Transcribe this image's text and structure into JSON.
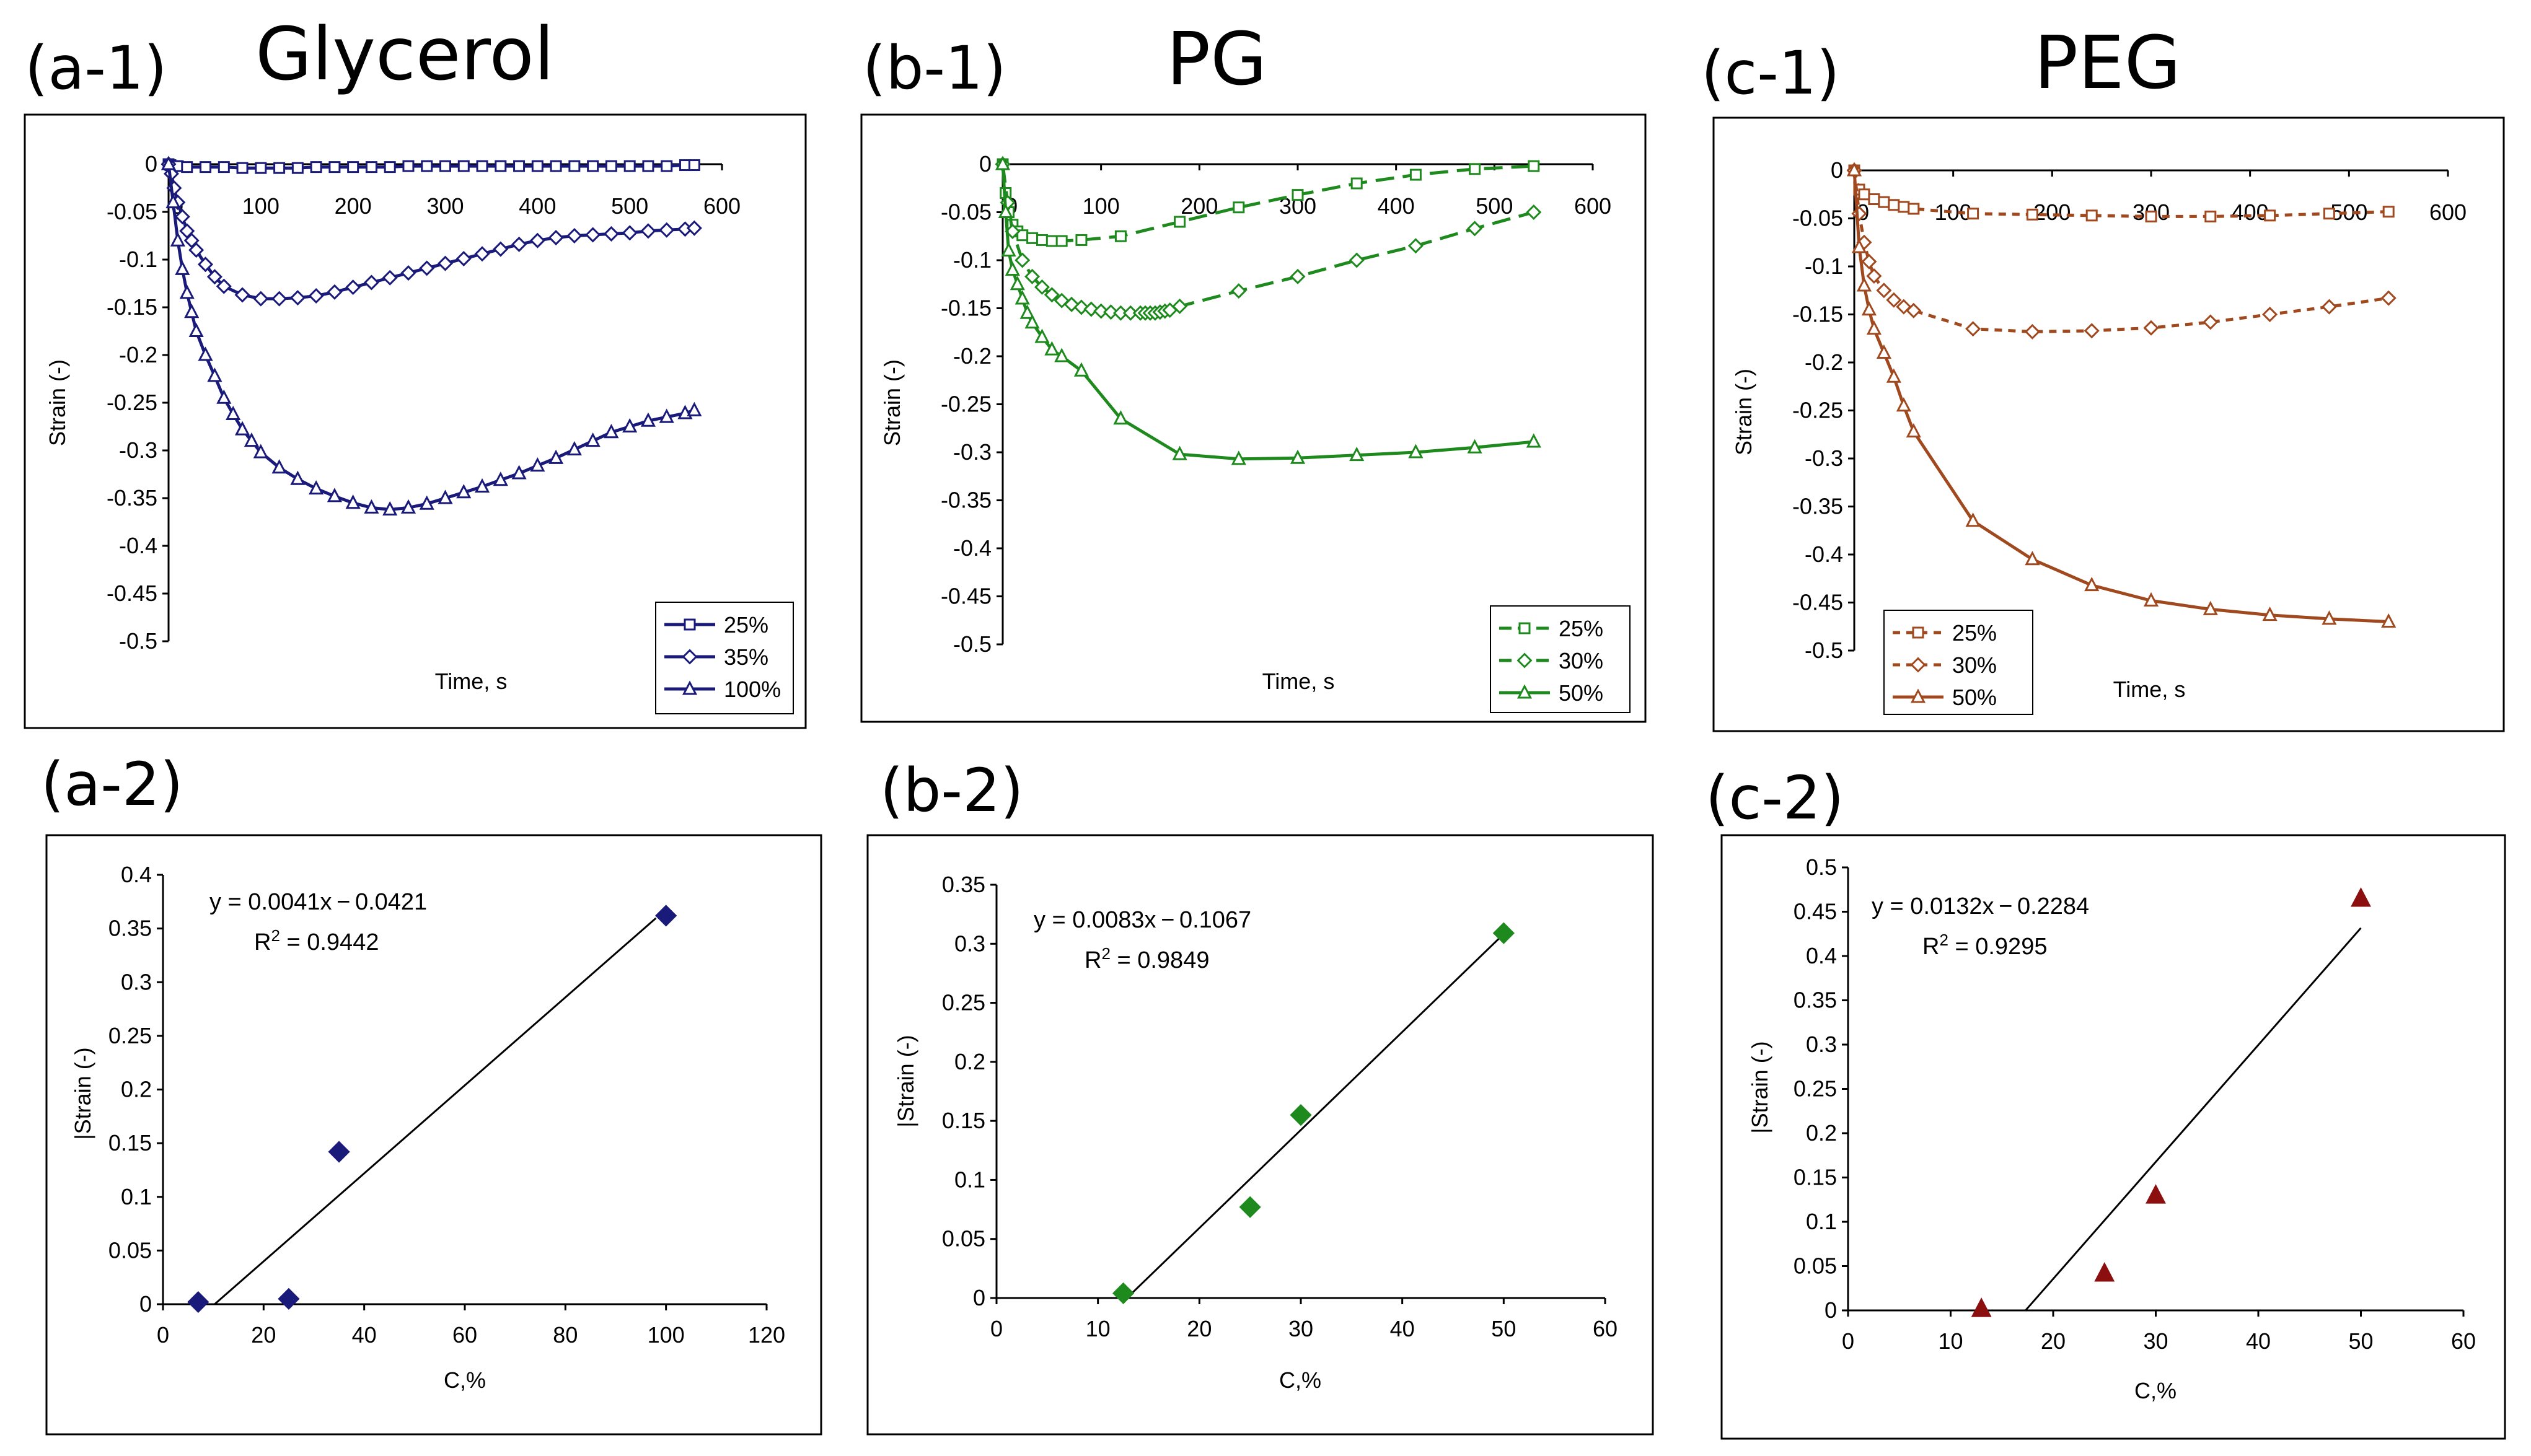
{
  "labels": {
    "a1": "(a-1)",
    "b1": "(b-1)",
    "c1": "(c-1)",
    "a2": "(a-2)",
    "b2": "(b-2)",
    "c2": "(c-2)"
  },
  "titles": {
    "glycerol": "Glycerol",
    "pg": "PG",
    "peg": "PEG"
  },
  "colors": {
    "glycerol": "#1a1a7a",
    "pg": "#1e8a1e",
    "peg": "#a0481e",
    "fit_line": "#000000",
    "peg_marker": "#8b0f0f"
  },
  "chart_data": [
    {
      "id": "a1",
      "type": "line",
      "xlabel": "Time, s",
      "ylabel": "Strain (-)",
      "xlim": [
        0,
        600
      ],
      "ylim": [
        -0.5,
        0
      ],
      "xticks": [
        "0",
        "100",
        "200",
        "300",
        "400",
        "500",
        "600"
      ],
      "yticks": [
        "0",
        "-0.05",
        "-0.1",
        "-0.15",
        "-0.2",
        "-0.25",
        "-0.3",
        "-0.35",
        "-0.4",
        "-0.45",
        "-0.5"
      ],
      "legend_position": "bottom-right",
      "series": [
        {
          "name": "25%",
          "marker": "square",
          "dash": "solid",
          "x": [
            0,
            2,
            5,
            10,
            20,
            40,
            60,
            80,
            100,
            120,
            140,
            160,
            180,
            200,
            220,
            240,
            260,
            280,
            300,
            320,
            340,
            360,
            380,
            400,
            420,
            440,
            460,
            480,
            500,
            520,
            540,
            560,
            570
          ],
          "y": [
            0,
            -0.001,
            -0.002,
            -0.002,
            -0.003,
            -0.003,
            -0.003,
            -0.004,
            -0.004,
            -0.004,
            -0.004,
            -0.003,
            -0.003,
            -0.003,
            -0.003,
            -0.003,
            -0.002,
            -0.002,
            -0.002,
            -0.002,
            -0.002,
            -0.002,
            -0.002,
            -0.002,
            -0.002,
            -0.002,
            -0.002,
            -0.002,
            -0.002,
            -0.002,
            -0.002,
            -0.001,
            -0.001
          ]
        },
        {
          "name": "35%",
          "marker": "diamond",
          "dash": "solid",
          "x": [
            0,
            3,
            6,
            10,
            15,
            20,
            25,
            30,
            40,
            50,
            60,
            80,
            100,
            120,
            140,
            160,
            180,
            200,
            220,
            240,
            260,
            280,
            300,
            320,
            340,
            360,
            380,
            400,
            420,
            440,
            460,
            480,
            500,
            520,
            540,
            560,
            570
          ],
          "y": [
            0,
            -0.01,
            -0.025,
            -0.04,
            -0.055,
            -0.07,
            -0.08,
            -0.09,
            -0.105,
            -0.118,
            -0.128,
            -0.137,
            -0.141,
            -0.141,
            -0.14,
            -0.138,
            -0.134,
            -0.129,
            -0.124,
            -0.119,
            -0.114,
            -0.109,
            -0.104,
            -0.099,
            -0.094,
            -0.089,
            -0.084,
            -0.08,
            -0.077,
            -0.075,
            -0.074,
            -0.073,
            -0.072,
            -0.07,
            -0.069,
            -0.068,
            -0.067
          ]
        },
        {
          "name": "100%",
          "marker": "triangle",
          "dash": "solid",
          "x": [
            0,
            5,
            10,
            15,
            20,
            25,
            30,
            40,
            50,
            60,
            70,
            80,
            90,
            100,
            120,
            140,
            160,
            180,
            200,
            220,
            240,
            260,
            280,
            300,
            320,
            340,
            360,
            380,
            400,
            420,
            440,
            460,
            480,
            500,
            520,
            540,
            560,
            570
          ],
          "y": [
            0,
            -0.04,
            -0.08,
            -0.11,
            -0.135,
            -0.155,
            -0.175,
            -0.2,
            -0.222,
            -0.245,
            -0.262,
            -0.278,
            -0.29,
            -0.302,
            -0.318,
            -0.33,
            -0.34,
            -0.348,
            -0.355,
            -0.36,
            -0.362,
            -0.36,
            -0.356,
            -0.35,
            -0.344,
            -0.338,
            -0.331,
            -0.324,
            -0.316,
            -0.308,
            -0.299,
            -0.29,
            -0.281,
            -0.275,
            -0.269,
            -0.265,
            -0.261,
            -0.258
          ]
        }
      ]
    },
    {
      "id": "b1",
      "type": "line",
      "xlabel": "Time, s",
      "ylabel": "Strain (-)",
      "xlim": [
        0,
        600
      ],
      "ylim": [
        -0.5,
        0
      ],
      "xticks": [
        "0",
        "100",
        "200",
        "300",
        "400",
        "500",
        "600"
      ],
      "yticks": [
        "0",
        "-0.05",
        "-0.1",
        "-0.15",
        "-0.2",
        "-0.25",
        "-0.3",
        "-0.35",
        "-0.4",
        "-0.45",
        "-0.5"
      ],
      "legend_position": "bottom-right",
      "series": [
        {
          "name": "25%",
          "marker": "square",
          "dash": "dashed",
          "x": [
            0,
            3,
            6,
            10,
            15,
            20,
            30,
            40,
            50,
            60,
            80,
            120,
            180,
            240,
            300,
            360,
            420,
            480,
            540
          ],
          "y": [
            0,
            -0.03,
            -0.05,
            -0.063,
            -0.07,
            -0.074,
            -0.077,
            -0.079,
            -0.08,
            -0.08,
            -0.079,
            -0.075,
            -0.06,
            -0.045,
            -0.032,
            -0.02,
            -0.011,
            -0.005,
            -0.002
          ]
        },
        {
          "name": "30%",
          "marker": "diamond",
          "dash": "dashed",
          "x": [
            0,
            5,
            10,
            20,
            30,
            40,
            50,
            60,
            70,
            80,
            90,
            100,
            110,
            120,
            130,
            140,
            145,
            150,
            155,
            160,
            165,
            170,
            180,
            240,
            300,
            360,
            420,
            480,
            540
          ],
          "y": [
            0,
            -0.04,
            -0.07,
            -0.1,
            -0.117,
            -0.128,
            -0.136,
            -0.142,
            -0.146,
            -0.149,
            -0.151,
            -0.153,
            -0.154,
            -0.155,
            -0.155,
            -0.155,
            -0.155,
            -0.155,
            -0.155,
            -0.154,
            -0.153,
            -0.152,
            -0.148,
            -0.132,
            -0.117,
            -0.1,
            -0.085,
            -0.067,
            -0.05
          ]
        },
        {
          "name": "50%",
          "marker": "triangle",
          "dash": "solid",
          "x": [
            0,
            3,
            6,
            10,
            15,
            20,
            25,
            30,
            40,
            50,
            60,
            80,
            120,
            180,
            240,
            300,
            360,
            420,
            480,
            540
          ],
          "y": [
            0,
            -0.05,
            -0.09,
            -0.11,
            -0.125,
            -0.14,
            -0.155,
            -0.165,
            -0.18,
            -0.193,
            -0.2,
            -0.215,
            -0.265,
            -0.302,
            -0.307,
            -0.306,
            -0.303,
            -0.3,
            -0.295,
            -0.289
          ]
        }
      ]
    },
    {
      "id": "c1",
      "type": "line",
      "xlabel": "Time, s",
      "ylabel": "Strain (-)",
      "xlim": [
        0,
        600
      ],
      "ylim": [
        -0.5,
        0
      ],
      "xticks": [
        "0",
        "100",
        "200",
        "300",
        "400",
        "500",
        "600"
      ],
      "yticks": [
        "0",
        "-0.05",
        "-0.1",
        "-0.15",
        "-0.2",
        "-0.25",
        "-0.3",
        "-0.35",
        "-0.4",
        "-0.45",
        "-0.5"
      ],
      "legend_position": "bottom-left",
      "series": [
        {
          "name": "25%",
          "marker": "square",
          "dash": "dashed",
          "x": [
            0,
            5,
            10,
            20,
            30,
            40,
            50,
            60,
            120,
            180,
            240,
            300,
            360,
            420,
            480,
            540
          ],
          "y": [
            0,
            -0.02,
            -0.025,
            -0.03,
            -0.033,
            -0.036,
            -0.038,
            -0.04,
            -0.045,
            -0.046,
            -0.047,
            -0.048,
            -0.048,
            -0.047,
            -0.045,
            -0.043
          ]
        },
        {
          "name": "30%",
          "marker": "diamond",
          "dash": "dashed",
          "x": [
            0,
            5,
            10,
            15,
            20,
            30,
            40,
            50,
            60,
            120,
            180,
            240,
            300,
            360,
            420,
            480,
            540
          ],
          "y": [
            0,
            -0.045,
            -0.075,
            -0.095,
            -0.11,
            -0.125,
            -0.135,
            -0.142,
            -0.146,
            -0.165,
            -0.168,
            -0.167,
            -0.164,
            -0.158,
            -0.15,
            -0.142,
            -0.133
          ]
        },
        {
          "name": "50%",
          "marker": "triangle",
          "dash": "solid",
          "x": [
            0,
            5,
            10,
            15,
            20,
            30,
            40,
            50,
            60,
            120,
            180,
            240,
            300,
            360,
            420,
            480,
            540
          ],
          "y": [
            0,
            -0.08,
            -0.12,
            -0.145,
            -0.165,
            -0.19,
            -0.215,
            -0.245,
            -0.272,
            -0.365,
            -0.405,
            -0.432,
            -0.448,
            -0.457,
            -0.463,
            -0.467,
            -0.47
          ]
        }
      ]
    },
    {
      "id": "a2",
      "type": "scatter",
      "xlabel": "C,%",
      "ylabel": "|Strain (-)",
      "xlim": [
        0,
        120
      ],
      "ylim": [
        0,
        0.4
      ],
      "xticks": [
        "0",
        "20",
        "40",
        "60",
        "80",
        "100",
        "120"
      ],
      "yticks": [
        "0",
        "0.05",
        "0.1",
        "0.15",
        "0.2",
        "0.25",
        "0.3",
        "0.35",
        "0.4"
      ],
      "marker": "diamond",
      "points": {
        "x": [
          7,
          25,
          35,
          100
        ],
        "y": [
          0.002,
          0.005,
          0.142,
          0.362
        ]
      },
      "fit": {
        "slope": 0.0041,
        "intercept": -0.0421,
        "x_range": [
          10.3,
          98
        ]
      },
      "equation": "y = 0.0041x − 0.0421",
      "r2_prefix": "R",
      "r2_exp": "2",
      "r2_value": " = 0.9442"
    },
    {
      "id": "b2",
      "type": "scatter",
      "xlabel": "C,%",
      "ylabel": "|Strain (-)",
      "xlim": [
        0,
        60
      ],
      "ylim": [
        0,
        0.35
      ],
      "xticks": [
        "0",
        "10",
        "20",
        "30",
        "40",
        "50",
        "60"
      ],
      "yticks": [
        "0",
        "0.05",
        "0.1",
        "0.15",
        "0.2",
        "0.25",
        "0.3",
        "0.35"
      ],
      "marker": "diamond",
      "points": {
        "x": [
          12.5,
          25,
          30,
          50
        ],
        "y": [
          0.004,
          0.077,
          0.155,
          0.309
        ]
      },
      "fit": {
        "slope": 0.0083,
        "intercept": -0.1067,
        "x_range": [
          12.9,
          50
        ]
      },
      "equation": "y = 0.0083x − 0.1067",
      "r2_prefix": "R",
      "r2_exp": "2",
      "r2_value": " = 0.9849"
    },
    {
      "id": "c2",
      "type": "scatter",
      "xlabel": "C,%",
      "ylabel": "|Strain (-)",
      "xlim": [
        0,
        60
      ],
      "ylim": [
        0,
        0.5
      ],
      "xticks": [
        "0",
        "10",
        "20",
        "30",
        "40",
        "50",
        "60"
      ],
      "yticks": [
        "0",
        "0.05",
        "0.1",
        "0.15",
        "0.2",
        "0.25",
        "0.3",
        "0.35",
        "0.4",
        "0.45",
        "0.5"
      ],
      "marker": "triangle",
      "points": {
        "x": [
          13,
          25,
          30,
          50
        ],
        "y": [
          0.002,
          0.042,
          0.13,
          0.465
        ]
      },
      "fit": {
        "slope": 0.0132,
        "intercept": -0.2284,
        "x_range": [
          17.3,
          50
        ]
      },
      "equation": "y = 0.0132x − 0.2284",
      "r2_prefix": "R",
      "r2_exp": "2",
      "r2_value": " = 0.9295"
    }
  ]
}
